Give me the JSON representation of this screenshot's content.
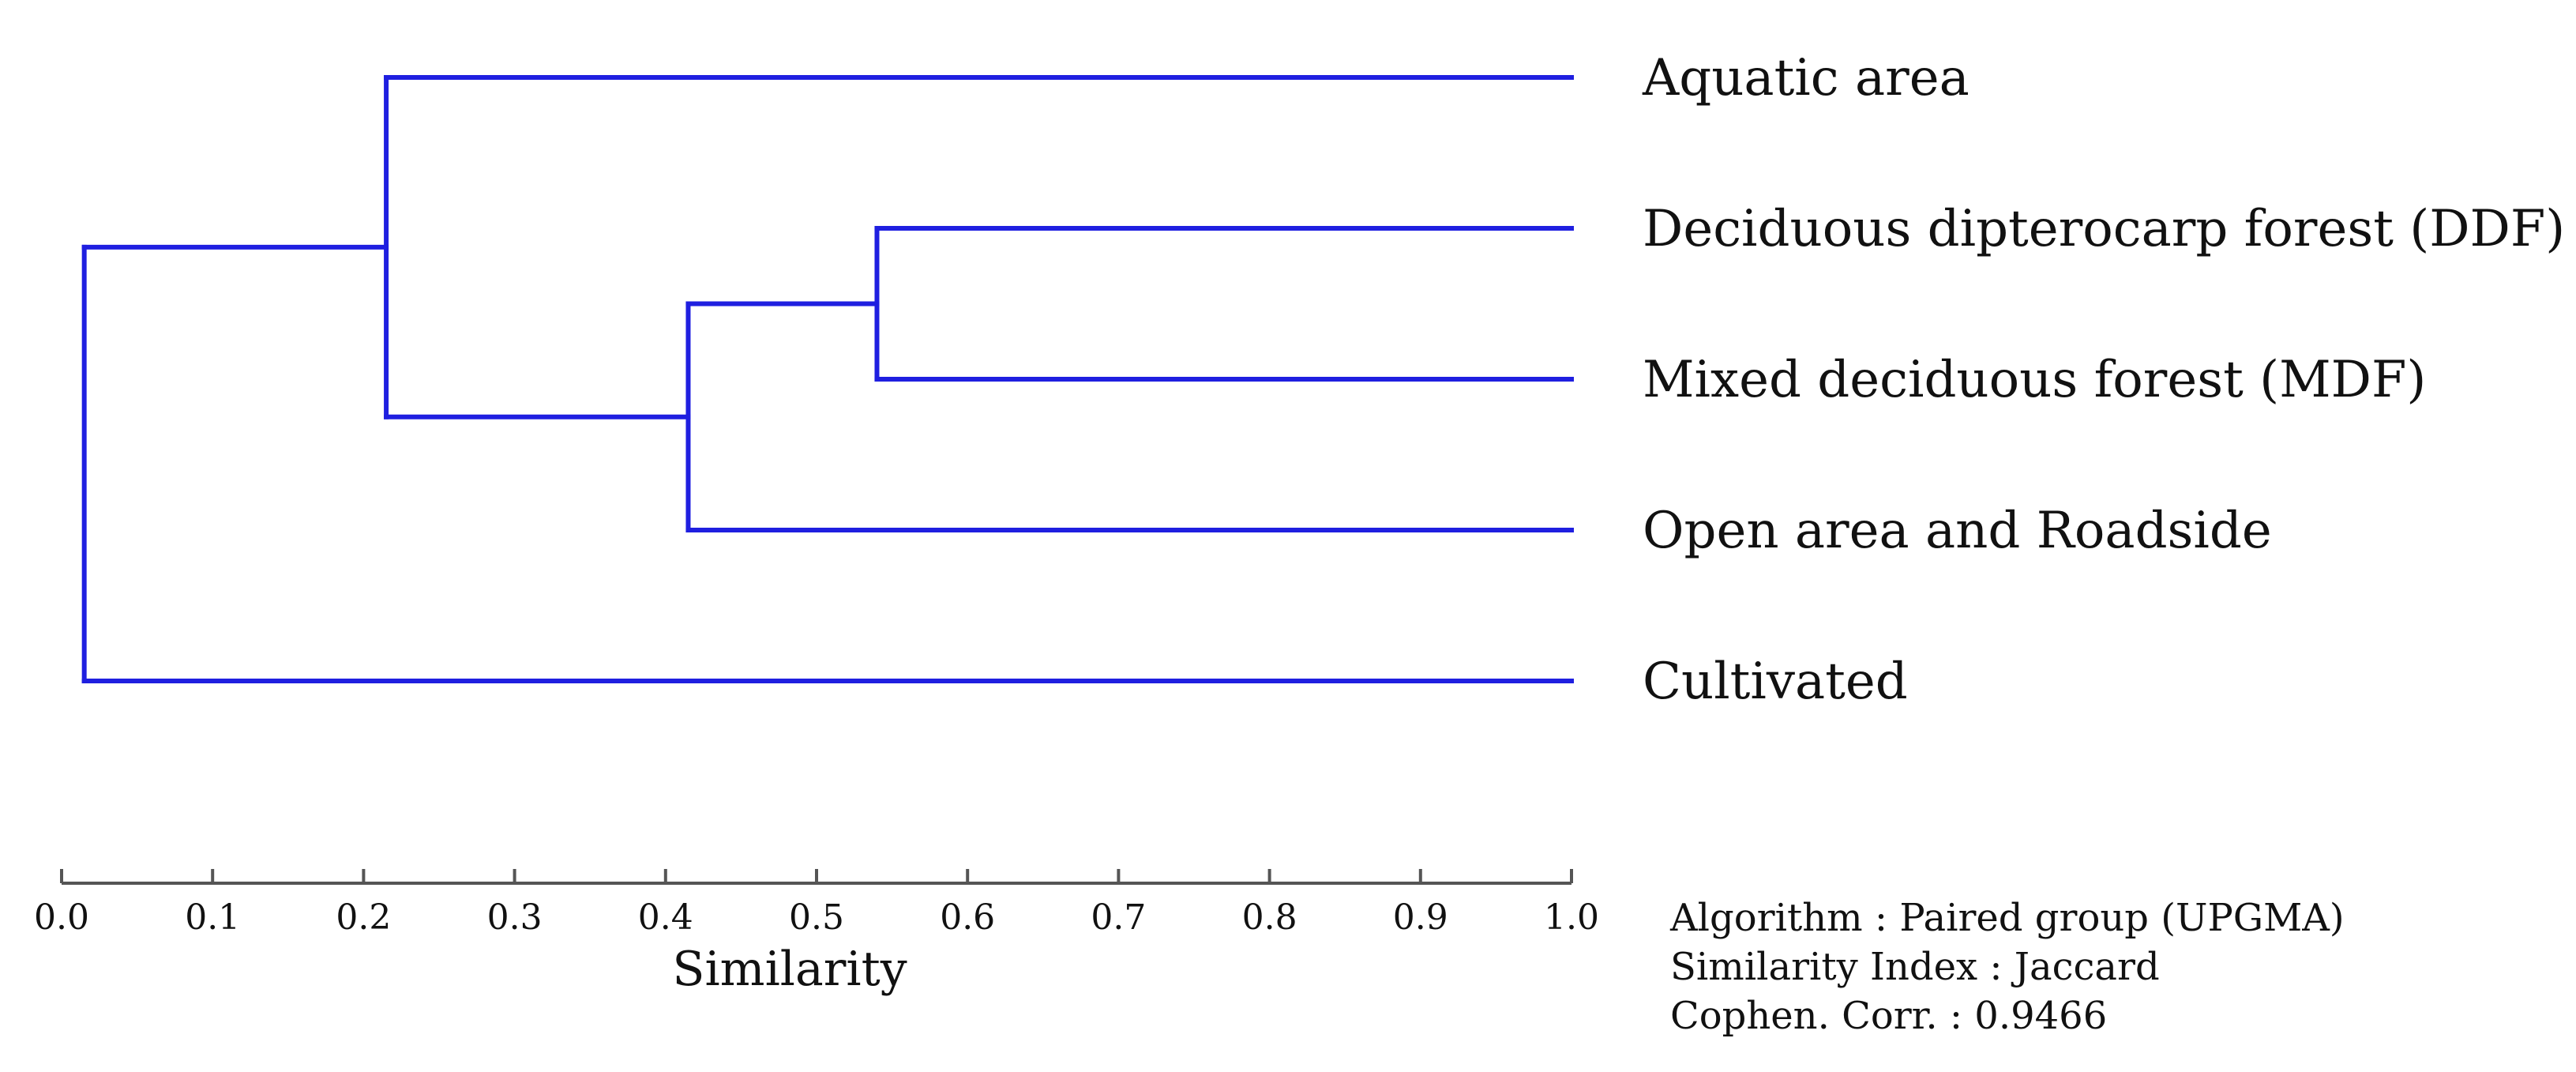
{
  "chart_data": {
    "type": "dendrogram",
    "leaves": [
      "Aquatic area",
      "Deciduous dipterocarp forest (DDF)",
      "Mixed deciduous forest (MDF)",
      "Open area and  Roadside",
      "Cultivated"
    ],
    "merges": [
      {
        "children": [
          "Deciduous dipterocarp forest (DDF)",
          "Mixed deciduous forest (MDF)"
        ],
        "similarity": 0.54
      },
      {
        "children": [
          "DDF+MDF",
          "Open area and  Roadside"
        ],
        "similarity": 0.415
      },
      {
        "children": [
          "Aquatic area",
          "DDF+MDF+Open area"
        ],
        "similarity": 0.215
      },
      {
        "children": [
          "Aquatic area+forests+open",
          "Cultivated"
        ],
        "similarity": 0.015
      }
    ],
    "xlabel": "Similarity",
    "xlim": [
      0.0,
      1.0
    ],
    "xticks": [
      "0.0",
      "0.1",
      "0.2",
      "0.3",
      "0.4",
      "0.5",
      "0.6",
      "0.7",
      "0.8",
      "0.9",
      "1.0"
    ],
    "line_color": "#1f1fe0",
    "notes": [
      "Algorithm : Paired group (UPGMA)",
      "Similarity Index : Jaccard",
      "Cophen. Corr. : 0.9466"
    ]
  }
}
